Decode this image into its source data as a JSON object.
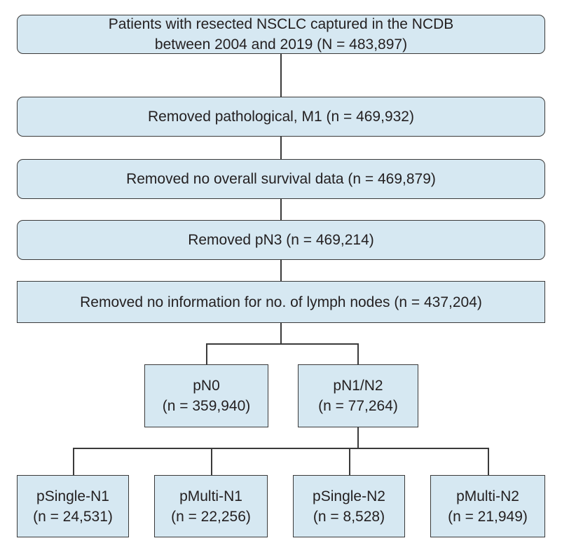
{
  "flowchart": {
    "source": {
      "line1": "Patients with resected NSCLC captured in the NCDB",
      "line2": "between 2004 and 2019 (N = 483,897)"
    },
    "steps": [
      "Removed pathological, M1 (n = 469,932)",
      "Removed no overall survival data (n = 469,879)",
      "Removed pN3 (n = 469,214)",
      "Removed no information for no. of lymph nodes (n = 437,204)"
    ],
    "groups": [
      {
        "label": "pN0",
        "count": "(n = 359,940)"
      },
      {
        "label": "pN1/N2",
        "count": "(n = 77,264)"
      }
    ],
    "subgroups": [
      {
        "label": "pSingle-N1",
        "count": "(n = 24,531)"
      },
      {
        "label": "pMulti-N1",
        "count": "(n = 22,256)"
      },
      {
        "label": "pSingle-N2",
        "count": "(n = 8,528)"
      },
      {
        "label": "pMulti-N2",
        "count": "(n = 21,949)"
      }
    ]
  },
  "colors": {
    "box_fill": "#d6e8f2",
    "border": "#3a3a3a",
    "text": "#231f20"
  }
}
